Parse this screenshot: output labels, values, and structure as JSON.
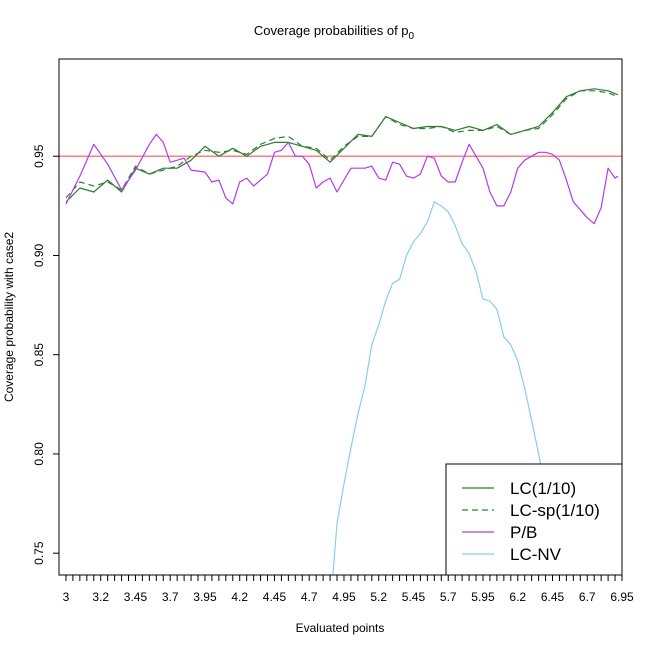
{
  "chart_data": {
    "type": "line",
    "title": "Coverage probabilities of p",
    "title_subscript": "0",
    "xlabel": "Evaluated points",
    "ylabel": "Coverage probability with case2",
    "x_tick_labels": [
      "3",
      "3.2",
      "3.45",
      "3.7",
      "3.95",
      "4.2",
      "4.45",
      "4.7",
      "4.95",
      "5.2",
      "5.45",
      "5.7",
      "5.95",
      "6.2",
      "6.45",
      "6.7",
      "6.95"
    ],
    "y_ticks": [
      0.75,
      0.8,
      0.85,
      0.9,
      0.95
    ],
    "y_tick_labels": [
      "0.75",
      "0.80",
      "0.85",
      "0.90",
      "0.95"
    ],
    "xlim": [
      2.95,
      7.0
    ],
    "ylim": [
      0.739,
      0.999
    ],
    "reference_line": {
      "y": 0.95,
      "color": "#ff7f7f"
    },
    "legend_position": "bottom-right",
    "series": [
      {
        "name": "LC(1/10)",
        "color": "#2e7d32",
        "dash": "",
        "points": [
          [
            3.0,
            0.927
          ],
          [
            3.1,
            0.934
          ],
          [
            3.2,
            0.932
          ],
          [
            3.3,
            0.938
          ],
          [
            3.4,
            0.932
          ],
          [
            3.5,
            0.944
          ],
          [
            3.6,
            0.941
          ],
          [
            3.7,
            0.944
          ],
          [
            3.8,
            0.944
          ],
          [
            3.9,
            0.948
          ],
          [
            4.0,
            0.955
          ],
          [
            4.1,
            0.95
          ],
          [
            4.2,
            0.954
          ],
          [
            4.3,
            0.95
          ],
          [
            4.4,
            0.955
          ],
          [
            4.5,
            0.957
          ],
          [
            4.6,
            0.957
          ],
          [
            4.7,
            0.955
          ],
          [
            4.8,
            0.953
          ],
          [
            4.9,
            0.947
          ],
          [
            5.0,
            0.954
          ],
          [
            5.1,
            0.961
          ],
          [
            5.2,
            0.96
          ],
          [
            5.3,
            0.97
          ],
          [
            5.4,
            0.967
          ],
          [
            5.5,
            0.964
          ],
          [
            5.6,
            0.965
          ],
          [
            5.7,
            0.965
          ],
          [
            5.8,
            0.963
          ],
          [
            5.9,
            0.965
          ],
          [
            6.0,
            0.963
          ],
          [
            6.1,
            0.966
          ],
          [
            6.2,
            0.961
          ],
          [
            6.3,
            0.963
          ],
          [
            6.4,
            0.965
          ],
          [
            6.5,
            0.972
          ],
          [
            6.6,
            0.98
          ],
          [
            6.7,
            0.983
          ],
          [
            6.8,
            0.984
          ],
          [
            6.9,
            0.983
          ],
          [
            6.97,
            0.981
          ]
        ]
      },
      {
        "name": "LC-sp(1/10)",
        "color": "#2e7d32",
        "dash": "6,4",
        "points": [
          [
            3.0,
            0.929
          ],
          [
            3.1,
            0.937
          ],
          [
            3.2,
            0.935
          ],
          [
            3.3,
            0.937
          ],
          [
            3.4,
            0.933
          ],
          [
            3.5,
            0.945
          ],
          [
            3.6,
            0.941
          ],
          [
            3.7,
            0.943
          ],
          [
            3.8,
            0.945
          ],
          [
            3.9,
            0.95
          ],
          [
            4.0,
            0.953
          ],
          [
            4.1,
            0.952
          ],
          [
            4.2,
            0.953
          ],
          [
            4.3,
            0.951
          ],
          [
            4.4,
            0.956
          ],
          [
            4.5,
            0.959
          ],
          [
            4.6,
            0.96
          ],
          [
            4.7,
            0.955
          ],
          [
            4.8,
            0.954
          ],
          [
            4.9,
            0.948
          ],
          [
            5.0,
            0.955
          ],
          [
            5.1,
            0.96
          ],
          [
            5.2,
            0.96
          ],
          [
            5.3,
            0.97
          ],
          [
            5.4,
            0.966
          ],
          [
            5.5,
            0.964
          ],
          [
            5.6,
            0.964
          ],
          [
            5.7,
            0.965
          ],
          [
            5.8,
            0.962
          ],
          [
            5.9,
            0.963
          ],
          [
            6.0,
            0.963
          ],
          [
            6.1,
            0.965
          ],
          [
            6.2,
            0.961
          ],
          [
            6.3,
            0.963
          ],
          [
            6.4,
            0.964
          ],
          [
            6.5,
            0.971
          ],
          [
            6.6,
            0.979
          ],
          [
            6.7,
            0.983
          ],
          [
            6.8,
            0.983
          ],
          [
            6.9,
            0.982
          ],
          [
            6.97,
            0.98
          ]
        ]
      },
      {
        "name": "P/B",
        "color": "#b43be8",
        "dash": "",
        "points": [
          [
            3.0,
            0.926
          ],
          [
            3.1,
            0.94
          ],
          [
            3.2,
            0.956
          ],
          [
            3.3,
            0.946
          ],
          [
            3.4,
            0.933
          ],
          [
            3.5,
            0.943
          ],
          [
            3.6,
            0.956
          ],
          [
            3.65,
            0.961
          ],
          [
            3.7,
            0.957
          ],
          [
            3.75,
            0.947
          ],
          [
            3.85,
            0.949
          ],
          [
            3.9,
            0.943
          ],
          [
            4.0,
            0.942
          ],
          [
            4.05,
            0.937
          ],
          [
            4.1,
            0.938
          ],
          [
            4.15,
            0.929
          ],
          [
            4.2,
            0.926
          ],
          [
            4.25,
            0.937
          ],
          [
            4.3,
            0.939
          ],
          [
            4.35,
            0.935
          ],
          [
            4.45,
            0.941
          ],
          [
            4.5,
            0.952
          ],
          [
            4.55,
            0.953
          ],
          [
            4.6,
            0.957
          ],
          [
            4.65,
            0.95
          ],
          [
            4.7,
            0.95
          ],
          [
            4.75,
            0.946
          ],
          [
            4.8,
            0.934
          ],
          [
            4.85,
            0.937
          ],
          [
            4.9,
            0.939
          ],
          [
            4.95,
            0.932
          ],
          [
            5.0,
            0.938
          ],
          [
            5.05,
            0.944
          ],
          [
            5.1,
            0.944
          ],
          [
            5.15,
            0.944
          ],
          [
            5.2,
            0.945
          ],
          [
            5.25,
            0.939
          ],
          [
            5.3,
            0.938
          ],
          [
            5.35,
            0.947
          ],
          [
            5.4,
            0.946
          ],
          [
            5.45,
            0.94
          ],
          [
            5.5,
            0.939
          ],
          [
            5.55,
            0.941
          ],
          [
            5.6,
            0.95
          ],
          [
            5.65,
            0.949
          ],
          [
            5.7,
            0.94
          ],
          [
            5.75,
            0.937
          ],
          [
            5.8,
            0.937
          ],
          [
            5.85,
            0.947
          ],
          [
            5.9,
            0.956
          ],
          [
            5.95,
            0.95
          ],
          [
            6.0,
            0.944
          ],
          [
            6.05,
            0.932
          ],
          [
            6.1,
            0.925
          ],
          [
            6.15,
            0.925
          ],
          [
            6.2,
            0.932
          ],
          [
            6.25,
            0.944
          ],
          [
            6.3,
            0.948
          ],
          [
            6.35,
            0.95
          ],
          [
            6.4,
            0.952
          ],
          [
            6.45,
            0.952
          ],
          [
            6.5,
            0.951
          ],
          [
            6.55,
            0.948
          ],
          [
            6.6,
            0.938
          ],
          [
            6.65,
            0.927
          ],
          [
            6.7,
            0.923
          ],
          [
            6.75,
            0.919
          ],
          [
            6.8,
            0.916
          ],
          [
            6.85,
            0.924
          ],
          [
            6.9,
            0.944
          ],
          [
            6.95,
            0.939
          ],
          [
            6.97,
            0.94
          ]
        ]
      },
      {
        "name": "LC-NV",
        "color": "#87ceeb",
        "dash": "",
        "points": [
          [
            4.92,
            0.739
          ],
          [
            4.95,
            0.765
          ],
          [
            5.0,
            0.785
          ],
          [
            5.05,
            0.803
          ],
          [
            5.1,
            0.82
          ],
          [
            5.15,
            0.834
          ],
          [
            5.2,
            0.855
          ],
          [
            5.25,
            0.865
          ],
          [
            5.3,
            0.877
          ],
          [
            5.35,
            0.886
          ],
          [
            5.4,
            0.888
          ],
          [
            5.45,
            0.9
          ],
          [
            5.5,
            0.907
          ],
          [
            5.55,
            0.911
          ],
          [
            5.6,
            0.917
          ],
          [
            5.65,
            0.927
          ],
          [
            5.7,
            0.925
          ],
          [
            5.75,
            0.922
          ],
          [
            5.8,
            0.915
          ],
          [
            5.85,
            0.906
          ],
          [
            5.9,
            0.901
          ],
          [
            5.95,
            0.892
          ],
          [
            6.0,
            0.878
          ],
          [
            6.05,
            0.877
          ],
          [
            6.1,
            0.873
          ],
          [
            6.15,
            0.859
          ],
          [
            6.2,
            0.855
          ],
          [
            6.25,
            0.847
          ],
          [
            6.3,
            0.833
          ],
          [
            6.35,
            0.817
          ],
          [
            6.4,
            0.8
          ],
          [
            6.43,
            0.789
          ]
        ]
      }
    ]
  }
}
